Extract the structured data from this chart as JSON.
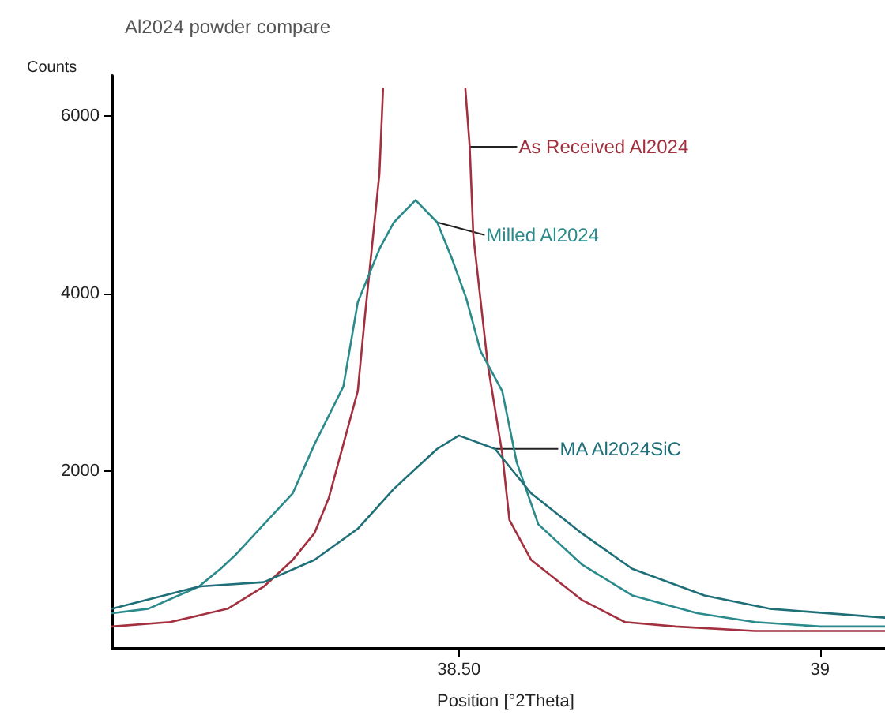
{
  "chart_data": {
    "type": "line",
    "title": "Al2024 powder compare",
    "xlabel": "Position [°2Theta]",
    "ylabel": "Counts",
    "xlim": [
      38.02,
      39.09
    ],
    "xticks": [
      {
        "value": 38.5,
        "label": "38.50"
      },
      39
    ],
    "ylim": [
      0,
      6450
    ],
    "yticks": [
      2000,
      4000,
      6000
    ],
    "grid": false,
    "legend": false,
    "marker": "none",
    "line_style": "solid",
    "series": [
      {
        "name": "As Received Al2024",
        "color": "#a3303f",
        "x": [
          38.02,
          38.1,
          38.18,
          38.23,
          38.27,
          38.3,
          38.32,
          38.34,
          38.36,
          38.37,
          38.39,
          38.395,
          38.45,
          38.509,
          38.515,
          38.52,
          38.54,
          38.56,
          38.57,
          38.6,
          38.67,
          38.73,
          38.8,
          38.91,
          39.09
        ],
        "values": [
          250,
          300,
          450,
          700,
          1000,
          1300,
          1700,
          2300,
          2900,
          3750,
          5350,
          6300,
          null,
          6300,
          5650,
          4650,
          3200,
          2200,
          1450,
          1000,
          550,
          300,
          250,
          200,
          200
        ]
      },
      {
        "name": "Milled Al2024",
        "color": "#2a8a8c",
        "x": [
          38.02,
          38.07,
          38.14,
          38.17,
          38.19,
          38.23,
          38.27,
          38.3,
          38.34,
          38.36,
          38.39,
          38.41,
          38.44,
          38.47,
          38.49,
          38.51,
          38.53,
          38.56,
          38.58,
          38.61,
          38.67,
          38.74,
          38.83,
          38.91,
          39,
          39.09
        ],
        "values": [
          400,
          450,
          700,
          900,
          1050,
          1400,
          1750,
          2300,
          2950,
          3900,
          4500,
          4800,
          5050,
          4800,
          4400,
          3950,
          3350,
          2900,
          2100,
          1400,
          950,
          600,
          400,
          300,
          250,
          250
        ]
      },
      {
        "name": "MA Al2024SiC",
        "color": "#1f6f78",
        "x": [
          38.02,
          38.14,
          38.23,
          38.3,
          38.36,
          38.41,
          38.47,
          38.5,
          38.55,
          38.6,
          38.67,
          38.74,
          38.84,
          38.93,
          39.09
        ],
        "values": [
          450,
          700,
          750,
          1000,
          1350,
          1800,
          2250,
          2400,
          2250,
          1750,
          1300,
          900,
          600,
          450,
          350
        ]
      }
    ]
  }
}
